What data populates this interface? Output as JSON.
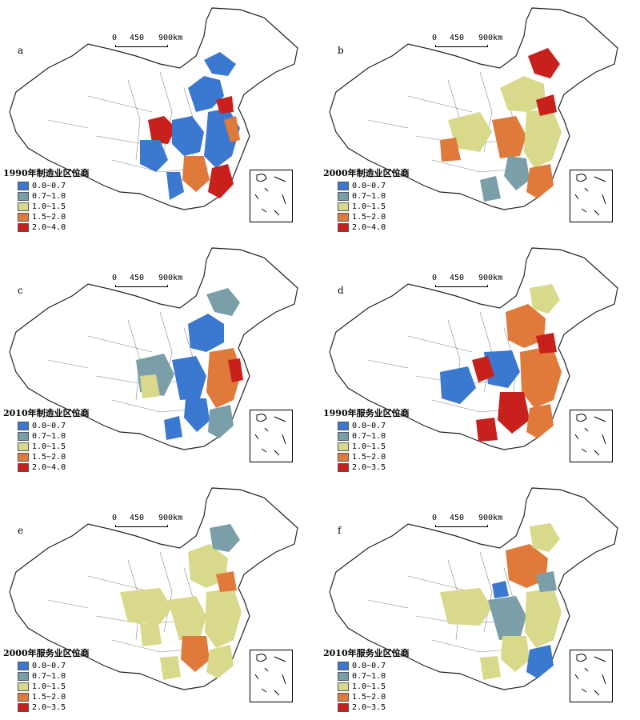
{
  "scale": {
    "zero": "0",
    "mid": "450",
    "end": "900km"
  },
  "panels": [
    {
      "letter": "a",
      "legend_title": "1990年制造业区位商",
      "classes": [
        "0.0~0.7",
        "0.7~1.0",
        "1.0~1.5",
        "1.5~2.0",
        "2.0~4.0"
      ]
    },
    {
      "letter": "b",
      "legend_title": "2000年制造业区位商",
      "classes": [
        "0.0~0.7",
        "0.7~1.0",
        "1.0~1.5",
        "1.5~2.0",
        "2.0~4.0"
      ]
    },
    {
      "letter": "c",
      "legend_title": "2010年制造业区位商",
      "classes": [
        "0.0~0.7",
        "0.7~1.0",
        "1.0~1.5",
        "1.5~2.0",
        "2.0~4.0"
      ]
    },
    {
      "letter": "d",
      "legend_title": "1990年服务业区位商",
      "classes": [
        "0.0~0.7",
        "0.7~1.0",
        "1.0~1.5",
        "1.5~2.0",
        "2.0~3.5"
      ]
    },
    {
      "letter": "e",
      "legend_title": "2000年服务业区位商",
      "classes": [
        "0.0~0.7",
        "0.7~1.0",
        "1.0~1.5",
        "1.5~2.0",
        "2.0~3.5"
      ]
    },
    {
      "letter": "f",
      "legend_title": "2010年服务业区位商",
      "classes": [
        "0.0~0.7",
        "0.7~1.0",
        "1.0~1.5",
        "1.5~2.0",
        "2.0~3.5"
      ]
    }
  ],
  "class_colors": [
    "#3b78d0",
    "#7a9fa8",
    "#d8d98a",
    "#e07a3a",
    "#c8201c"
  ]
}
